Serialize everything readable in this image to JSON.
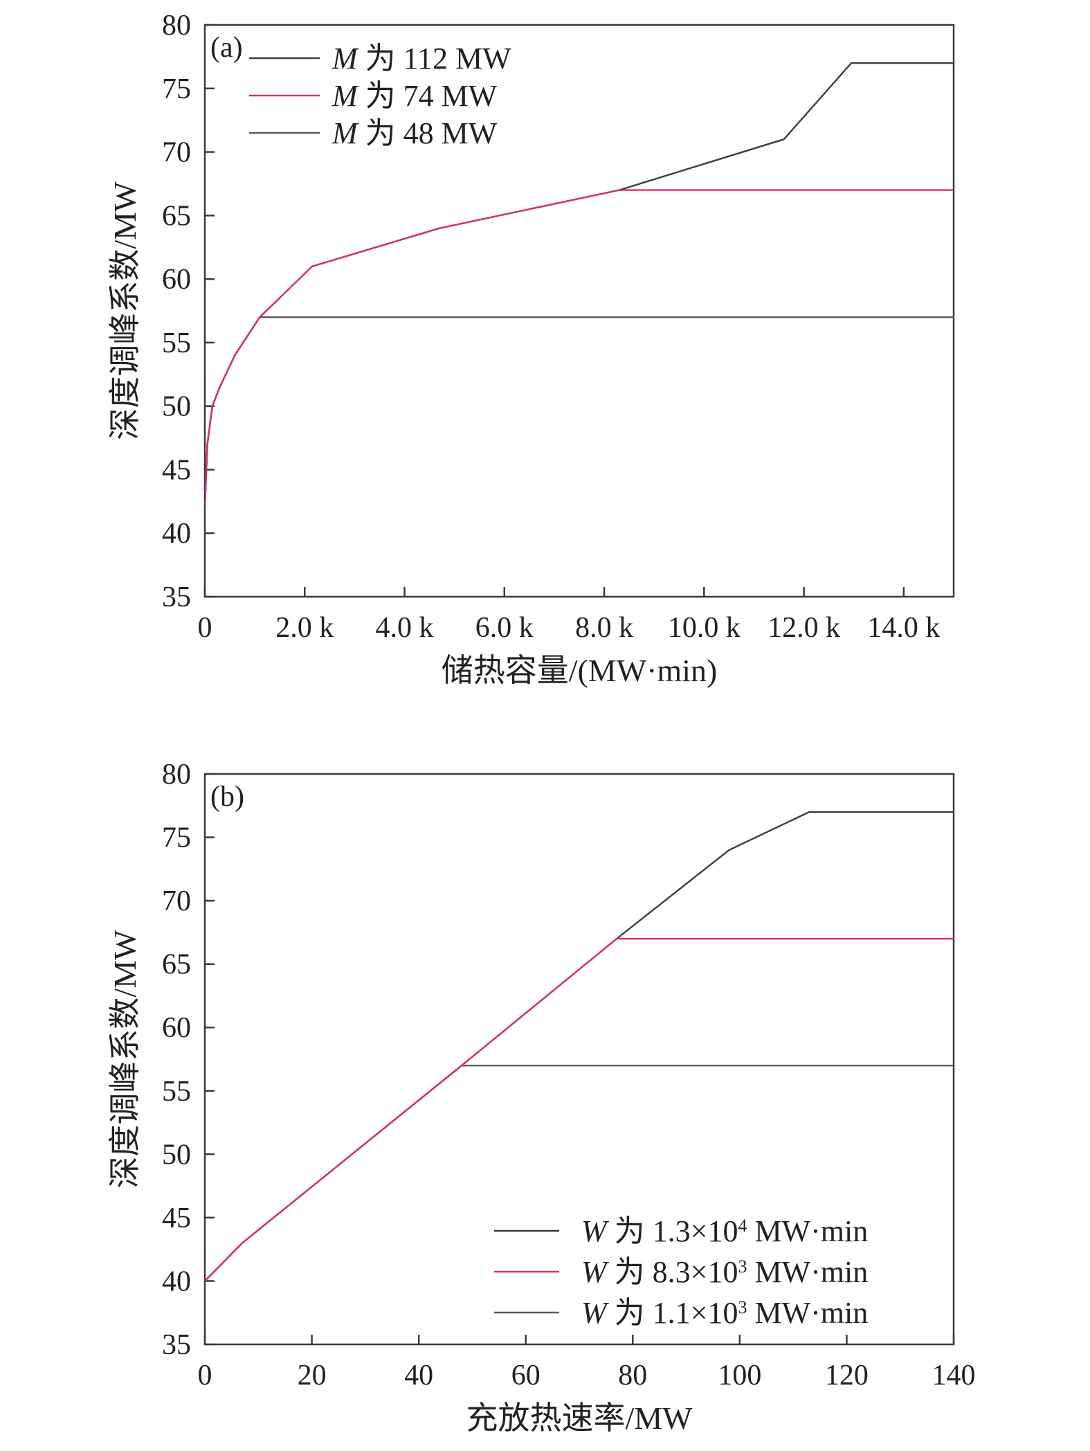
{
  "chart_data": [
    {
      "type": "line",
      "panel_label": "(a)",
      "xlabel": "储热容量/(MW·min)",
      "ylabel": "深度调峰系数/MW",
      "xlim": [
        0,
        15000
      ],
      "ylim": [
        35,
        80
      ],
      "xticks": [
        0,
        2000,
        4000,
        6000,
        8000,
        10000,
        12000,
        14000
      ],
      "xtick_labels": [
        "0",
        "2.0 k",
        "4.0 k",
        "6.0 k",
        "8.0 k",
        "10.0 k",
        "12.0 k",
        "14.0 k"
      ],
      "yticks": [
        35,
        40,
        45,
        50,
        55,
        60,
        65,
        70,
        75,
        80
      ],
      "ytick_labels": [
        "35",
        "40",
        "45",
        "50",
        "55",
        "60",
        "65",
        "70",
        "75",
        "80"
      ],
      "grid": false,
      "legend_position": "top-left",
      "series": [
        {
          "name": "M 为 112 MW",
          "legend_italic": "M",
          "legend_rest": " 为 112 MW",
          "color": "#3d3d3d",
          "x": [
            0,
            50,
            150,
            300,
            600,
            1100,
            2150,
            4700,
            8300,
            11600,
            12950,
            15000
          ],
          "y": [
            42,
            47,
            50,
            51.5,
            54,
            57,
            61,
            64,
            67,
            71,
            77,
            77
          ]
        },
        {
          "name": "M 为 74 MW",
          "legend_italic": "M",
          "legend_rest": " 为 74 MW",
          "color": "#d6336c",
          "x": [
            0,
            50,
            150,
            300,
            600,
            1100,
            2150,
            4700,
            8300,
            15000
          ],
          "y": [
            42,
            47,
            50,
            51.5,
            54,
            57,
            61,
            64,
            67,
            67
          ]
        },
        {
          "name": "M 为 48 MW",
          "legend_italic": "M",
          "legend_rest": " 为 48 MW",
          "color": "#5a5a5a",
          "x": [
            0,
            50,
            150,
            300,
            600,
            1100,
            15000
          ],
          "y": [
            42,
            47,
            50,
            51.5,
            54,
            57,
            57
          ]
        }
      ]
    },
    {
      "type": "line",
      "panel_label": "(b)",
      "xlabel": "充放热速率/MW",
      "ylabel": "深度调峰系数/MW",
      "xlim": [
        0,
        140
      ],
      "ylim": [
        35,
        80
      ],
      "xticks": [
        0,
        20,
        40,
        60,
        80,
        100,
        120,
        140
      ],
      "xtick_labels": [
        "0",
        "20",
        "40",
        "60",
        "80",
        "100",
        "120",
        "140"
      ],
      "yticks": [
        35,
        40,
        45,
        50,
        55,
        60,
        65,
        70,
        75,
        80
      ],
      "ytick_labels": [
        "35",
        "40",
        "45",
        "50",
        "55",
        "60",
        "65",
        "70",
        "75",
        "80"
      ],
      "grid": false,
      "legend_position": "bottom-right",
      "series": [
        {
          "name": "W 为 1.3×10⁴ MW·min",
          "legend_italic": "W",
          "legend_rest": " 为 1.3×10",
          "legend_sup": "4",
          "legend_tail": " MW·min",
          "color": "#3d3d3d",
          "x": [
            0,
            7,
            48,
            77,
            98,
            113,
            140
          ],
          "y": [
            40,
            43,
            57,
            67,
            74,
            77,
            77
          ]
        },
        {
          "name": "W 为 8.3×10³ MW·min",
          "legend_italic": "W",
          "legend_rest": " 为 8.3×10",
          "legend_sup": "3",
          "legend_tail": " MW·min",
          "color": "#d6336c",
          "x": [
            0,
            7,
            48,
            77,
            140
          ],
          "y": [
            40,
            43,
            57,
            67,
            67
          ]
        },
        {
          "name": "W 为 1.1×10³ MW·min",
          "legend_italic": "W",
          "legend_rest": " 为 1.1×10",
          "legend_sup": "3",
          "legend_tail": " MW·min",
          "color": "#5a5a5a",
          "x": [
            0,
            7,
            48,
            140
          ],
          "y": [
            40,
            43,
            57,
            57
          ]
        }
      ]
    }
  ]
}
